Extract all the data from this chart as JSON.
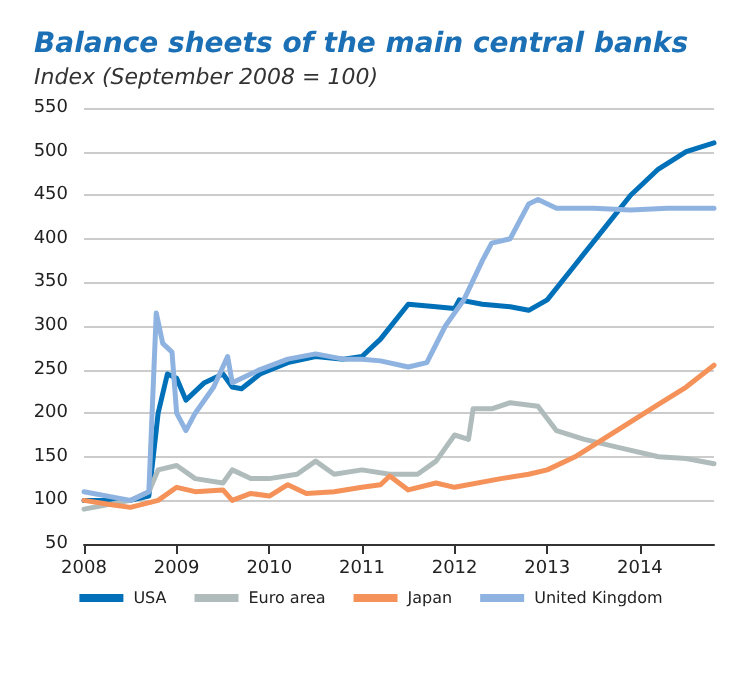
{
  "chart_data": {
    "type": "line",
    "title": "Balance sheets of the main central banks",
    "subtitle": "Index (September 2008 = 100)",
    "xlim": [
      2008,
      2014.8
    ],
    "xticks": [
      2008,
      2009,
      2010,
      2011,
      2012,
      2013,
      2014
    ],
    "ylim": [
      50,
      550
    ],
    "yticks": [
      50,
      100,
      150,
      200,
      250,
      300,
      350,
      400,
      450,
      500,
      550
    ],
    "grid": "y",
    "legend": "bottom",
    "marker": "none",
    "line_style": "solid",
    "series": [
      {
        "name": "USA",
        "color": "#0070b8",
        "x": [
          2008,
          2008.5,
          2008.7,
          2008.8,
          2008.9,
          2009,
          2009.1,
          2009.3,
          2009.5,
          2009.6,
          2009.7,
          2009.9,
          2010.2,
          2010.5,
          2010.8,
          2011,
          2011.2,
          2011.5,
          2011.8,
          2012,
          2012.05,
          2012.3,
          2012.6,
          2012.8,
          2013,
          2013.3,
          2013.6,
          2013.9,
          2014.2,
          2014.5,
          2014.8
        ],
        "values": [
          100,
          100,
          105,
          200,
          245,
          240,
          215,
          235,
          245,
          230,
          228,
          245,
          258,
          265,
          262,
          265,
          285,
          325,
          322,
          320,
          330,
          325,
          322,
          318,
          330,
          370,
          410,
          450,
          480,
          500,
          510
        ]
      },
      {
        "name": "Euro area",
        "color": "#b0bcbc",
        "x": [
          2008,
          2008.5,
          2008.7,
          2008.8,
          2009,
          2009.2,
          2009.5,
          2009.6,
          2009.8,
          2010,
          2010.3,
          2010.5,
          2010.7,
          2011,
          2011.3,
          2011.6,
          2011.8,
          2012,
          2012.15,
          2012.2,
          2012.4,
          2012.6,
          2012.9,
          2013.1,
          2013.4,
          2013.8,
          2014.2,
          2014.5,
          2014.8
        ],
        "values": [
          90,
          100,
          110,
          135,
          140,
          125,
          120,
          135,
          125,
          125,
          130,
          145,
          130,
          135,
          130,
          130,
          145,
          175,
          170,
          205,
          205,
          212,
          208,
          180,
          170,
          160,
          150,
          148,
          142
        ]
      },
      {
        "name": "Japan",
        "color": "#f4925a",
        "x": [
          2008,
          2008.3,
          2008.5,
          2008.8,
          2009,
          2009.2,
          2009.5,
          2009.6,
          2009.8,
          2010,
          2010.2,
          2010.4,
          2010.7,
          2011,
          2011.2,
          2011.3,
          2011.5,
          2011.8,
          2012,
          2012.5,
          2012.8,
          2013,
          2013.3,
          2013.6,
          2013.9,
          2014.2,
          2014.5,
          2014.8
        ],
        "values": [
          100,
          95,
          92,
          100,
          115,
          110,
          112,
          100,
          108,
          105,
          118,
          108,
          110,
          115,
          118,
          128,
          112,
          120,
          115,
          125,
          130,
          135,
          150,
          170,
          190,
          210,
          230,
          255
        ]
      },
      {
        "name": "United Kingdom",
        "color": "#8fb3e0",
        "x": [
          2008,
          2008.5,
          2008.7,
          2008.78,
          2008.85,
          2008.95,
          2009,
          2009.1,
          2009.2,
          2009.4,
          2009.55,
          2009.6,
          2009.9,
          2010.2,
          2010.5,
          2010.8,
          2011,
          2011.2,
          2011.5,
          2011.7,
          2011.9,
          2012.1,
          2012.3,
          2012.4,
          2012.6,
          2012.8,
          2012.9,
          2013.1,
          2013.5,
          2013.9,
          2014.3,
          2014.8
        ],
        "values": [
          110,
          100,
          110,
          315,
          280,
          270,
          200,
          180,
          200,
          230,
          265,
          235,
          250,
          262,
          268,
          262,
          262,
          260,
          253,
          258,
          300,
          330,
          375,
          395,
          400,
          440,
          445,
          435,
          435,
          433,
          435,
          435
        ]
      }
    ]
  }
}
